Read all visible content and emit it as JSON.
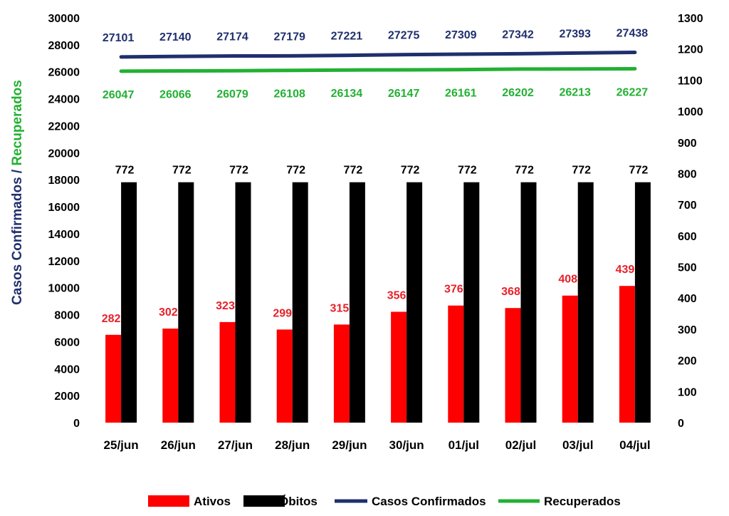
{
  "chart_data": {
    "type": "bar",
    "categories": [
      "25/jun",
      "26/jun",
      "27/jun",
      "28/jun",
      "29/jun",
      "30/jun",
      "01/jul",
      "02/jul",
      "03/jul",
      "04/jul"
    ],
    "left_axis": {
      "ylim": [
        0,
        30000
      ],
      "step": 2000,
      "label_part1": "Casos Confirmados",
      "label_sep": " / ",
      "label_part2": "Recuperados"
    },
    "right_axis": {
      "ylim": [
        0,
        1300
      ],
      "step": 100
    },
    "series": [
      {
        "name": "Ativos",
        "type": "bar",
        "axis": "right",
        "color": "#ff0000",
        "label_color": "#e8202a",
        "values": [
          282,
          302,
          323,
          299,
          315,
          356,
          376,
          368,
          408,
          439
        ]
      },
      {
        "name": "Óbitos",
        "type": "bar",
        "axis": "right",
        "color": "#000000",
        "label_color": "#000000",
        "values": [
          772,
          772,
          772,
          772,
          772,
          772,
          772,
          772,
          772,
          772
        ]
      },
      {
        "name": "Casos Confirmados",
        "type": "line",
        "axis": "left",
        "color": "#1f2f6e",
        "label_color": "#1f2f6e",
        "values": [
          27101,
          27140,
          27174,
          27179,
          27221,
          27275,
          27309,
          27342,
          27393,
          27438
        ]
      },
      {
        "name": "Recuperados",
        "type": "line",
        "axis": "left",
        "color": "#22b132",
        "label_color": "#22b132",
        "values": [
          26047,
          26066,
          26079,
          26108,
          26134,
          26147,
          26161,
          26202,
          26213,
          26227
        ]
      }
    ],
    "legend_position": "bottom",
    "grid": false
  }
}
